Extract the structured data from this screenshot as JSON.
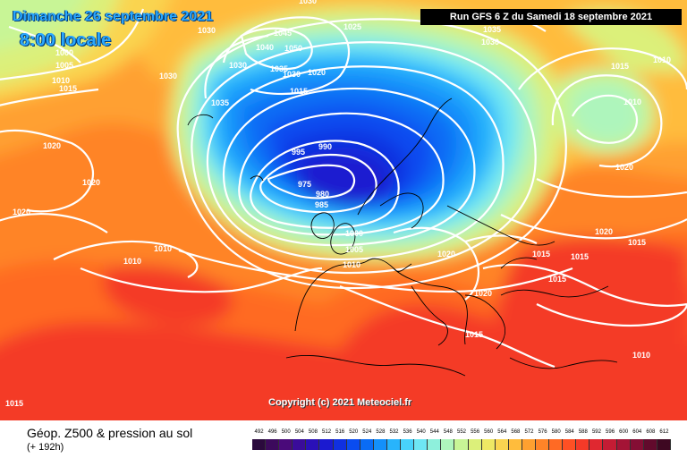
{
  "header": {
    "date": "Dimanche 26 septembre 2021",
    "time": "8:00 locale",
    "run": "Run GFS 6 Z du Samedi 18 septembre 2021"
  },
  "copyright": "Copyright (c) 2021 Meteociel.fr",
  "footer": {
    "title": "Géop. Z500 & pression au sol",
    "subtitle": "(+ 192h)"
  },
  "legend": {
    "values": [
      "492",
      "496",
      "500",
      "504",
      "508",
      "512",
      "516",
      "520",
      "524",
      "528",
      "532",
      "536",
      "540",
      "544",
      "548",
      "552",
      "556",
      "560",
      "564",
      "568",
      "572",
      "576",
      "580",
      "584",
      "588",
      "592",
      "596",
      "600",
      "604",
      "608",
      "612"
    ],
    "colors": [
      "#2b0a3d",
      "#3c0a5c",
      "#4a0a7a",
      "#3a0c9a",
      "#2a10b8",
      "#1b1ad0",
      "#1030e0",
      "#0a4cf0",
      "#0a6cf5",
      "#1490fa",
      "#28b4fc",
      "#48d2fb",
      "#6ee6f4",
      "#8ef0dc",
      "#aef5bc",
      "#c8f596",
      "#dcf07a",
      "#eee864",
      "#fad450",
      "#ffbc3c",
      "#ffa030",
      "#ff8428",
      "#ff6a24",
      "#ff5024",
      "#f43a28",
      "#e02830",
      "#c41c34",
      "#a41436",
      "#840e34",
      "#620a2c",
      "#3e0822"
    ]
  },
  "pressure_labels": [
    {
      "t": "1030"
    },
    {
      "t": "1030"
    },
    {
      "t": "1000"
    },
    {
      "t": "1005"
    },
    {
      "t": "1010"
    },
    {
      "t": "1015"
    },
    {
      "t": "1030"
    },
    {
      "t": "1045"
    },
    {
      "t": "1040"
    },
    {
      "t": "1050"
    },
    {
      "t": "1035"
    },
    {
      "t": "1030"
    },
    {
      "t": "1020"
    },
    {
      "t": "1030"
    },
    {
      "t": "1035"
    },
    {
      "t": "1015"
    },
    {
      "t": "1025"
    },
    {
      "t": "1035"
    },
    {
      "t": "1030"
    },
    {
      "t": "1015"
    },
    {
      "t": "1010"
    },
    {
      "t": "1010"
    },
    {
      "t": "995"
    },
    {
      "t": "990"
    },
    {
      "t": "975"
    },
    {
      "t": "980"
    },
    {
      "t": "985"
    },
    {
      "t": "1020"
    },
    {
      "t": "1020"
    },
    {
      "t": "1020"
    },
    {
      "t": "1010"
    },
    {
      "t": "1010"
    },
    {
      "t": "1000"
    },
    {
      "t": "1005"
    },
    {
      "t": "1010"
    },
    {
      "t": "1020"
    },
    {
      "t": "1020"
    },
    {
      "t": "1015"
    },
    {
      "t": "1015"
    },
    {
      "t": "1015"
    },
    {
      "t": "1020"
    },
    {
      "t": "1015"
    },
    {
      "t": "1010"
    },
    {
      "t": "1015"
    },
    {
      "t": "1020"
    },
    {
      "t": "1015"
    }
  ],
  "colors": {
    "iso_line": "#ffffff",
    "coastline": "#000000",
    "run_box_bg": "#000000",
    "title_text": "#2aa8ff"
  }
}
